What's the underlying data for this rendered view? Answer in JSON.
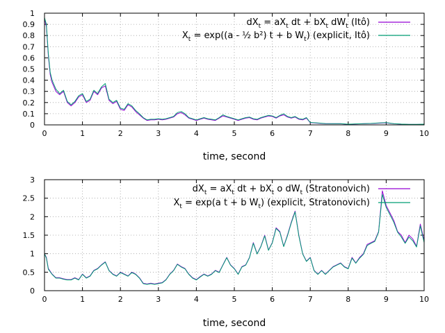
{
  "colors": {
    "series1": "#9400d3",
    "series2": "#009e73",
    "grid": "#a0a0a0",
    "axis": "#000000"
  },
  "chart_data": [
    {
      "type": "line",
      "title": "",
      "xlabel": "time, second",
      "ylabel": "",
      "xlim": [
        0,
        10
      ],
      "ylim": [
        0,
        1
      ],
      "xticks": [
        "0",
        "1",
        "2",
        "3",
        "4",
        "5",
        "6",
        "7",
        "8",
        "9",
        "10"
      ],
      "yticks": [
        "0",
        "0.1",
        "0.2",
        "0.3",
        "0.4",
        "0.5",
        "0.6",
        "0.7",
        "0.8",
        "0.9",
        "1"
      ],
      "grid": true,
      "legend_position": "top-right",
      "legend": [
        {
          "parts": [
            "dX",
            "t",
            " = aX",
            "t",
            " dt + bX",
            "t",
            " dW",
            "t",
            " (Itô)"
          ]
        },
        {
          "parts": [
            "X",
            "t",
            " = exp((a - ½ b²) t + b W",
            "t",
            ") (explicit, Itô)"
          ]
        }
      ],
      "series": [
        {
          "x": [
            0,
            0.05,
            0.1,
            0.15,
            0.2,
            0.3,
            0.4,
            0.5,
            0.6,
            0.7,
            0.8,
            0.9,
            1.0,
            1.1,
            1.2,
            1.3,
            1.4,
            1.5,
            1.6,
            1.7,
            1.8,
            1.9,
            2.0,
            2.1,
            2.2,
            2.3,
            2.4,
            2.5,
            2.6,
            2.7,
            2.8,
            2.9,
            3.0,
            3.1,
            3.2,
            3.3,
            3.4,
            3.5,
            3.6,
            3.7,
            3.8,
            3.9,
            4.0,
            4.1,
            4.2,
            4.3,
            4.4,
            4.5,
            4.6,
            4.7,
            4.8,
            4.9,
            5.0,
            5.1,
            5.2,
            5.3,
            5.4,
            5.5,
            5.6,
            5.7,
            5.8,
            5.9,
            6.0,
            6.1,
            6.2,
            6.3,
            6.4,
            6.5,
            6.6,
            6.7,
            6.8,
            6.9,
            7.0,
            7.2,
            7.4,
            7.6,
            7.8,
            8.0,
            8.2,
            8.4,
            8.6,
            8.8,
            9.0,
            9.2,
            9.4,
            9.6,
            9.8,
            10.0
          ],
          "y": [
            0.95,
            0.88,
            0.62,
            0.45,
            0.38,
            0.3,
            0.27,
            0.3,
            0.2,
            0.17,
            0.2,
            0.25,
            0.27,
            0.2,
            0.22,
            0.3,
            0.27,
            0.33,
            0.35,
            0.22,
            0.19,
            0.21,
            0.14,
            0.13,
            0.18,
            0.16,
            0.12,
            0.09,
            0.06,
            0.04,
            0.045,
            0.045,
            0.05,
            0.045,
            0.05,
            0.06,
            0.07,
            0.1,
            0.11,
            0.09,
            0.06,
            0.05,
            0.04,
            0.05,
            0.06,
            0.05,
            0.045,
            0.04,
            0.06,
            0.08,
            0.07,
            0.06,
            0.05,
            0.04,
            0.05,
            0.06,
            0.065,
            0.05,
            0.045,
            0.06,
            0.07,
            0.08,
            0.075,
            0.06,
            0.08,
            0.09,
            0.07,
            0.06,
            0.07,
            0.05,
            0.045,
            0.06,
            0.02,
            0.015,
            0.01,
            0.01,
            0.01,
            0.005,
            0.008,
            0.01,
            0.012,
            0.015,
            0.018,
            0.01,
            0.006,
            0.004,
            0.004,
            0.005
          ]
        },
        {
          "x": [
            0,
            0.05,
            0.1,
            0.15,
            0.2,
            0.3,
            0.4,
            0.5,
            0.6,
            0.7,
            0.8,
            0.9,
            1.0,
            1.1,
            1.2,
            1.3,
            1.4,
            1.5,
            1.6,
            1.7,
            1.8,
            1.9,
            2.0,
            2.1,
            2.2,
            2.3,
            2.4,
            2.5,
            2.6,
            2.7,
            2.8,
            2.9,
            3.0,
            3.1,
            3.2,
            3.3,
            3.4,
            3.5,
            3.6,
            3.7,
            3.8,
            3.9,
            4.0,
            4.1,
            4.2,
            4.3,
            4.4,
            4.5,
            4.6,
            4.7,
            4.8,
            4.9,
            5.0,
            5.1,
            5.2,
            5.3,
            5.4,
            5.5,
            5.6,
            5.7,
            5.8,
            5.9,
            6.0,
            6.1,
            6.2,
            6.3,
            6.4,
            6.5,
            6.6,
            6.7,
            6.8,
            6.9,
            7.0,
            7.2,
            7.4,
            7.6,
            7.8,
            8.0,
            8.2,
            8.4,
            8.6,
            8.8,
            9.0,
            9.2,
            9.4,
            9.6,
            9.8,
            10.0
          ],
          "y": [
            0.96,
            0.9,
            0.64,
            0.47,
            0.4,
            0.32,
            0.28,
            0.31,
            0.21,
            0.18,
            0.21,
            0.26,
            0.28,
            0.21,
            0.23,
            0.31,
            0.28,
            0.34,
            0.37,
            0.23,
            0.2,
            0.22,
            0.15,
            0.14,
            0.19,
            0.17,
            0.13,
            0.1,
            0.065,
            0.045,
            0.05,
            0.05,
            0.055,
            0.05,
            0.055,
            0.065,
            0.075,
            0.11,
            0.12,
            0.1,
            0.065,
            0.055,
            0.045,
            0.055,
            0.065,
            0.055,
            0.05,
            0.045,
            0.065,
            0.09,
            0.075,
            0.065,
            0.055,
            0.045,
            0.055,
            0.065,
            0.07,
            0.055,
            0.05,
            0.065,
            0.075,
            0.085,
            0.08,
            0.065,
            0.085,
            0.1,
            0.075,
            0.065,
            0.075,
            0.055,
            0.05,
            0.065,
            0.022,
            0.017,
            0.012,
            0.011,
            0.011,
            0.006,
            0.009,
            0.011,
            0.013,
            0.017,
            0.02,
            0.011,
            0.007,
            0.005,
            0.005,
            0.006
          ]
        }
      ]
    },
    {
      "type": "line",
      "title": "",
      "xlabel": "time, second",
      "ylabel": "",
      "xlim": [
        0,
        10
      ],
      "ylim": [
        0,
        3
      ],
      "xticks": [
        "0",
        "1",
        "2",
        "3",
        "4",
        "5",
        "6",
        "7",
        "8",
        "9",
        "10"
      ],
      "yticks": [
        "0",
        "0.5",
        "1",
        "1.5",
        "2",
        "2.5",
        "3"
      ],
      "grid": true,
      "legend_position": "top-right",
      "legend": [
        {
          "parts": [
            "dX",
            "t",
            " = aX",
            "t",
            " dt + bX",
            "t",
            " o dW",
            "t",
            " (Stratonovich)"
          ]
        },
        {
          "parts": [
            "X",
            "t",
            " = exp(a t + b W",
            "t",
            ") (explicit, Stratonovich)"
          ]
        }
      ],
      "series": [
        {
          "x": [
            0,
            0.05,
            0.1,
            0.2,
            0.3,
            0.4,
            0.5,
            0.6,
            0.7,
            0.8,
            0.9,
            1.0,
            1.1,
            1.2,
            1.3,
            1.4,
            1.5,
            1.6,
            1.7,
            1.8,
            1.9,
            2.0,
            2.1,
            2.2,
            2.3,
            2.4,
            2.5,
            2.6,
            2.7,
            2.8,
            2.9,
            3.0,
            3.1,
            3.2,
            3.3,
            3.4,
            3.5,
            3.6,
            3.7,
            3.8,
            3.9,
            4.0,
            4.1,
            4.2,
            4.3,
            4.4,
            4.5,
            4.6,
            4.7,
            4.8,
            4.9,
            5.0,
            5.1,
            5.2,
            5.3,
            5.4,
            5.5,
            5.6,
            5.7,
            5.8,
            5.9,
            6.0,
            6.1,
            6.2,
            6.3,
            6.4,
            6.5,
            6.6,
            6.7,
            6.8,
            6.9,
            7.0,
            7.1,
            7.2,
            7.3,
            7.4,
            7.5,
            7.6,
            7.7,
            7.8,
            7.9,
            8.0,
            8.1,
            8.2,
            8.3,
            8.4,
            8.5,
            8.6,
            8.7,
            8.8,
            8.9,
            9.0,
            9.1,
            9.2,
            9.3,
            9.4,
            9.5,
            9.6,
            9.7,
            9.8,
            9.9,
            10.0
          ],
          "y": [
            1.0,
            0.9,
            0.6,
            0.45,
            0.35,
            0.35,
            0.32,
            0.3,
            0.3,
            0.35,
            0.3,
            0.45,
            0.35,
            0.4,
            0.55,
            0.6,
            0.7,
            0.78,
            0.55,
            0.45,
            0.4,
            0.5,
            0.45,
            0.4,
            0.5,
            0.45,
            0.35,
            0.2,
            0.18,
            0.2,
            0.18,
            0.2,
            0.22,
            0.3,
            0.45,
            0.55,
            0.72,
            0.65,
            0.6,
            0.45,
            0.35,
            0.3,
            0.38,
            0.45,
            0.4,
            0.45,
            0.55,
            0.5,
            0.7,
            0.9,
            0.7,
            0.6,
            0.45,
            0.65,
            0.7,
            0.9,
            1.3,
            1.0,
            1.2,
            1.5,
            1.1,
            1.3,
            1.7,
            1.6,
            1.2,
            1.5,
            1.85,
            2.15,
            1.5,
            1.0,
            0.8,
            0.9,
            0.55,
            0.45,
            0.55,
            0.45,
            0.55,
            0.65,
            0.7,
            0.75,
            0.65,
            0.6,
            0.9,
            0.75,
            0.9,
            1.0,
            1.25,
            1.3,
            1.35,
            1.6,
            2.7,
            2.3,
            2.1,
            1.9,
            1.6,
            1.5,
            1.3,
            1.5,
            1.4,
            1.2,
            1.8,
            1.35
          ]
        },
        {
          "x": [
            0,
            0.05,
            0.1,
            0.2,
            0.3,
            0.4,
            0.5,
            0.6,
            0.7,
            0.8,
            0.9,
            1.0,
            1.1,
            1.2,
            1.3,
            1.4,
            1.5,
            1.6,
            1.7,
            1.8,
            1.9,
            2.0,
            2.1,
            2.2,
            2.3,
            2.4,
            2.5,
            2.6,
            2.7,
            2.8,
            2.9,
            3.0,
            3.1,
            3.2,
            3.3,
            3.4,
            3.5,
            3.6,
            3.7,
            3.8,
            3.9,
            4.0,
            4.1,
            4.2,
            4.3,
            4.4,
            4.5,
            4.6,
            4.7,
            4.8,
            4.9,
            5.0,
            5.1,
            5.2,
            5.3,
            5.4,
            5.5,
            5.6,
            5.7,
            5.8,
            5.9,
            6.0,
            6.1,
            6.2,
            6.3,
            6.4,
            6.5,
            6.6,
            6.7,
            6.8,
            6.9,
            7.0,
            7.1,
            7.2,
            7.3,
            7.4,
            7.5,
            7.6,
            7.7,
            7.8,
            7.9,
            8.0,
            8.1,
            8.2,
            8.3,
            8.4,
            8.5,
            8.6,
            8.7,
            8.8,
            8.9,
            9.0,
            9.1,
            9.2,
            9.3,
            9.4,
            9.5,
            9.6,
            9.7,
            9.8,
            9.9,
            10.0
          ],
          "y": [
            1.0,
            0.88,
            0.58,
            0.44,
            0.34,
            0.34,
            0.31,
            0.29,
            0.29,
            0.34,
            0.29,
            0.44,
            0.34,
            0.39,
            0.54,
            0.59,
            0.69,
            0.77,
            0.54,
            0.44,
            0.39,
            0.49,
            0.44,
            0.39,
            0.49,
            0.44,
            0.34,
            0.19,
            0.17,
            0.19,
            0.17,
            0.19,
            0.21,
            0.29,
            0.44,
            0.54,
            0.71,
            0.64,
            0.59,
            0.44,
            0.34,
            0.29,
            0.37,
            0.44,
            0.39,
            0.44,
            0.54,
            0.49,
            0.69,
            0.89,
            0.69,
            0.59,
            0.44,
            0.64,
            0.69,
            0.89,
            1.28,
            0.99,
            1.19,
            1.48,
            1.09,
            1.29,
            1.68,
            1.58,
            1.19,
            1.48,
            1.83,
            2.13,
            1.48,
            0.99,
            0.79,
            0.89,
            0.54,
            0.44,
            0.54,
            0.44,
            0.54,
            0.64,
            0.69,
            0.74,
            0.64,
            0.59,
            0.88,
            0.74,
            0.88,
            0.98,
            1.22,
            1.28,
            1.33,
            1.58,
            2.6,
            2.25,
            2.05,
            1.85,
            1.58,
            1.45,
            1.28,
            1.45,
            1.35,
            1.18,
            1.75,
            1.3
          ]
        }
      ]
    }
  ]
}
